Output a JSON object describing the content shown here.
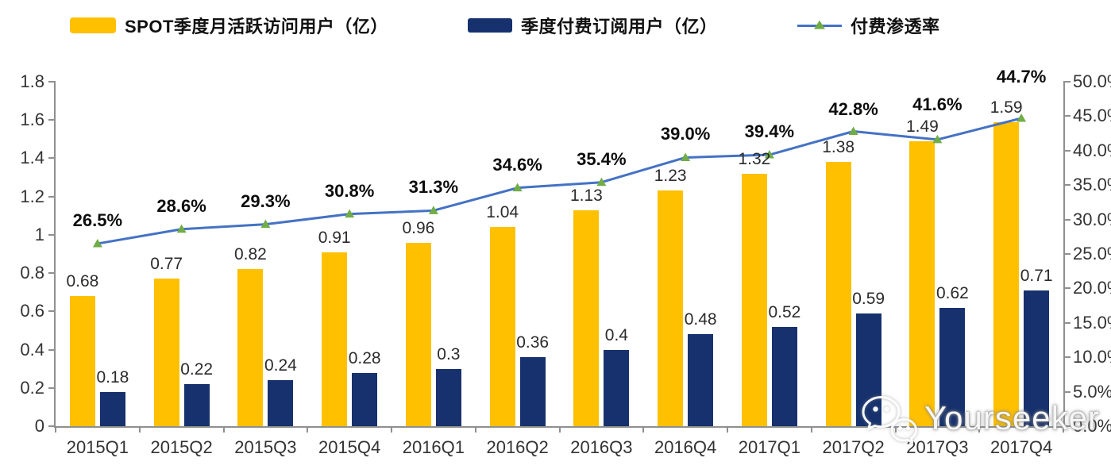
{
  "legend": {
    "items": [
      {
        "label": "SPOT季度月活跃访问用户（亿）",
        "swatch": "bar",
        "color": "#FFC000"
      },
      {
        "label": "季度付费订阅用户（亿）",
        "swatch": "bar",
        "color": "#16316D"
      },
      {
        "label": "付费渗透率",
        "swatch": "line",
        "color": "#4472C4",
        "marker_color": "#70AD47"
      }
    ]
  },
  "watermark": {
    "label": "Yourseeker",
    "icon": "wechat-icon"
  },
  "chart_data": {
    "type": "bar",
    "subtype": "grouped bars with overlay line on secondary axis",
    "categories": [
      "2015Q1",
      "2015Q2",
      "2015Q3",
      "2015Q4",
      "2016Q1",
      "2016Q2",
      "2016Q3",
      "2016Q4",
      "2017Q1",
      "2017Q2",
      "2017Q3",
      "2017Q4"
    ],
    "series": [
      {
        "name": "SPOT季度月活跃访问用户（亿）",
        "chart": "bar",
        "axis": "left",
        "color": "#FFC000",
        "values": [
          0.68,
          0.77,
          0.82,
          0.91,
          0.96,
          1.04,
          1.13,
          1.23,
          1.32,
          1.38,
          1.49,
          1.59
        ],
        "labels": [
          "0.68",
          "0.77",
          "0.82",
          "0.91",
          "0.96",
          "1.04",
          "1.13",
          "1.23",
          "1.32",
          "1.38",
          "1.49",
          "1.59"
        ]
      },
      {
        "name": "季度付费订阅用户（亿）",
        "chart": "bar",
        "axis": "left",
        "color": "#16316D",
        "values": [
          0.18,
          0.22,
          0.24,
          0.28,
          0.3,
          0.36,
          0.4,
          0.48,
          0.52,
          0.59,
          0.62,
          0.71
        ],
        "labels": [
          "0.18",
          "0.22",
          "0.24",
          "0.28",
          "0.3",
          "0.36",
          "0.4",
          "0.48",
          "0.52",
          "0.59",
          "0.62",
          "0.71"
        ]
      },
      {
        "name": "付费渗透率",
        "chart": "line",
        "axis": "right",
        "color": "#4472C4",
        "marker": "triangle",
        "marker_color": "#70AD47",
        "values": [
          26.5,
          28.6,
          29.3,
          30.8,
          31.3,
          34.6,
          35.4,
          39.0,
          39.4,
          42.8,
          41.6,
          44.7
        ],
        "labels": [
          "26.5%",
          "28.6%",
          "29.3%",
          "30.8%",
          "31.3%",
          "34.6%",
          "35.4%",
          "39.0%",
          "39.4%",
          "42.8%",
          "41.6%",
          "44.7%"
        ]
      }
    ],
    "left_axis": {
      "min": 0,
      "max": 1.8,
      "tick_labels": [
        "0",
        "0.2",
        "0.4",
        "0.6",
        "0.8",
        "1",
        "1.2",
        "1.4",
        "1.6",
        "1.8"
      ]
    },
    "right_axis": {
      "min": 0,
      "max": 50,
      "tick_labels": [
        "0.0%",
        "5.0%",
        "10.0%",
        "15.0%",
        "20.0%",
        "25.0%",
        "30.0%",
        "35.0%",
        "40.0%",
        "45.0%",
        "50.0%"
      ]
    },
    "grid": false,
    "legend_position": "top"
  }
}
